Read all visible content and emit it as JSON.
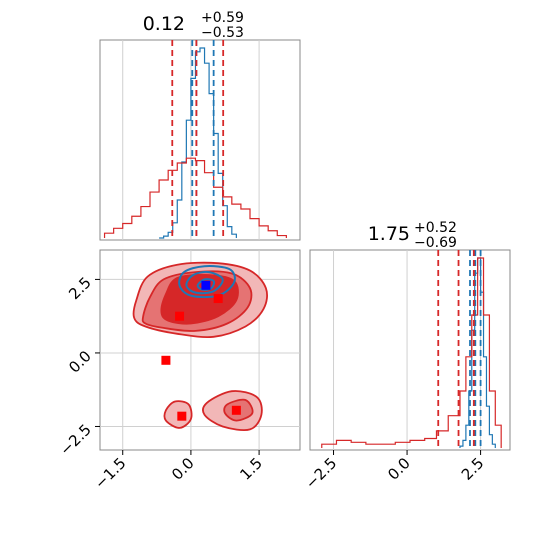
{
  "chart_data": [
    {
      "panel": "top-left",
      "type": "histogram",
      "title_value": "0.12",
      "title_plus": "+0.59",
      "title_minus": "−0.53",
      "xlim": [
        -2.0,
        2.4
      ],
      "grid": true,
      "series": [
        {
          "color": "#1f77b4",
          "bin_edges": [
            -0.7,
            -0.6,
            -0.5,
            -0.4,
            -0.3,
            -0.2,
            -0.1,
            0.0,
            0.1,
            0.2,
            0.3,
            0.4,
            0.5,
            0.6,
            0.7,
            0.8,
            0.9,
            1.0
          ],
          "heights": [
            0,
            1,
            3,
            8,
            20,
            40,
            62,
            84,
            98,
            100,
            92,
            76,
            55,
            34,
            17,
            6,
            2
          ],
          "quantile_lines": [
            0.03,
            0.12,
            0.5
          ]
        },
        {
          "color": "#d62728",
          "bin_edges": [
            -1.9,
            -1.7,
            -1.5,
            -1.3,
            -1.1,
            -0.9,
            -0.7,
            -0.5,
            -0.3,
            -0.1,
            0.1,
            0.3,
            0.5,
            0.7,
            0.9,
            1.1,
            1.3,
            1.5,
            1.7,
            1.9,
            2.1
          ],
          "heights": [
            2,
            4,
            6,
            9,
            13,
            19,
            24,
            28,
            31,
            33,
            32,
            27,
            21,
            17,
            14,
            12,
            8,
            5,
            3,
            1
          ],
          "quantile_lines": [
            -0.41,
            0.12,
            0.71
          ]
        }
      ]
    },
    {
      "panel": "bottom-right",
      "type": "histogram",
      "title_value": "1.75",
      "title_plus": "+0.52",
      "title_minus": "−0.69",
      "xlim": [
        -3.3,
        3.5
      ],
      "ticks": [
        -2.5,
        0.0,
        2.5
      ],
      "tick_labels": [
        "−2.5",
        "0.0",
        "2.5"
      ],
      "grid": true,
      "series": [
        {
          "color": "#1f77b4",
          "bin_edges": [
            1.8,
            1.9,
            2.0,
            2.1,
            2.2,
            2.3,
            2.4,
            2.5,
            2.6,
            2.7,
            2.8,
            2.9,
            3.0
          ],
          "heights": [
            1,
            4,
            12,
            30,
            62,
            92,
            100,
            82,
            48,
            22,
            7,
            2
          ],
          "quantile_lines": [
            2.14,
            2.32,
            2.5
          ]
        },
        {
          "color": "#d62728",
          "bin_edges": [
            -2.9,
            -2.4,
            -1.9,
            -1.4,
            -0.9,
            -0.4,
            0.1,
            0.6,
            1.0,
            1.4,
            1.8,
            2.0,
            2.2,
            2.4,
            2.6,
            2.8,
            3.0,
            3.2
          ],
          "heights": [
            2,
            4,
            3,
            2,
            2,
            3,
            4,
            5,
            9,
            17,
            30,
            48,
            70,
            100,
            70,
            30,
            12
          ],
          "quantile_lines": [
            1.06,
            1.75,
            2.27
          ]
        }
      ]
    },
    {
      "panel": "bottom-left",
      "type": "contour",
      "xlim": [
        -2.0,
        2.4
      ],
      "ylim": [
        -3.3,
        3.5
      ],
      "xticks": [
        -1.5,
        0.0,
        1.5
      ],
      "xtick_labels": [
        "−1.5",
        "0.0",
        "1.5"
      ],
      "yticks": [
        -2.5,
        0.0,
        2.5
      ],
      "ytick_labels": [
        "−2.5",
        "0.0",
        "2.5"
      ],
      "grid": true,
      "red_contours": [
        {
          "level": "outer",
          "fill": "#f2b7b7",
          "points": [
            [
              -1.25,
              1.2
            ],
            [
              -1.2,
              1.8
            ],
            [
              -0.95,
              2.6
            ],
            [
              -0.3,
              3.0
            ],
            [
              0.6,
              3.05
            ],
            [
              1.3,
              2.8
            ],
            [
              1.65,
              2.2
            ],
            [
              1.6,
              1.5
            ],
            [
              1.2,
              0.9
            ],
            [
              0.5,
              0.55
            ],
            [
              -0.3,
              0.65
            ],
            [
              -1.0,
              0.9
            ]
          ]
        },
        {
          "level": "middle",
          "fill": "#e57373",
          "points": [
            [
              -1.05,
              1.25
            ],
            [
              -0.9,
              1.9
            ],
            [
              -0.6,
              2.5
            ],
            [
              0.1,
              2.75
            ],
            [
              0.9,
              2.7
            ],
            [
              1.3,
              2.2
            ],
            [
              1.25,
              1.55
            ],
            [
              0.8,
              1.0
            ],
            [
              0.1,
              0.75
            ],
            [
              -0.6,
              0.85
            ],
            [
              -1.0,
              1.0
            ]
          ]
        },
        {
          "level": "inner",
          "fill": "#d62728",
          "points": [
            [
              -0.65,
              1.4
            ],
            [
              -0.55,
              2.0
            ],
            [
              -0.3,
              2.55
            ],
            [
              0.4,
              2.65
            ],
            [
              0.95,
              2.45
            ],
            [
              1.0,
              1.8
            ],
            [
              0.6,
              1.25
            ],
            [
              0.0,
              1.0
            ],
            [
              -0.5,
              1.1
            ]
          ]
        },
        {
          "level": "lower-left",
          "fill": "#f2b7b7",
          "points": [
            [
              -0.55,
              -1.95
            ],
            [
              -0.35,
              -1.65
            ],
            [
              -0.05,
              -1.75
            ],
            [
              -0.0,
              -2.25
            ],
            [
              -0.25,
              -2.55
            ],
            [
              -0.55,
              -2.3
            ]
          ]
        },
        {
          "level": "lower-right",
          "fill": "#f2b7b7",
          "points": [
            [
              0.35,
              -1.7
            ],
            [
              0.9,
              -1.3
            ],
            [
              1.45,
              -1.5
            ],
            [
              1.55,
              -2.1
            ],
            [
              1.3,
              -2.6
            ],
            [
              0.7,
              -2.5
            ],
            [
              0.3,
              -2.1
            ]
          ]
        },
        {
          "level": "lower-right-inner",
          "fill": "#e57373",
          "points": [
            [
              0.8,
              -1.75
            ],
            [
              1.2,
              -1.6
            ],
            [
              1.35,
              -2.05
            ],
            [
              1.0,
              -2.3
            ],
            [
              0.75,
              -2.05
            ]
          ]
        }
      ],
      "blue_contours": [
        {
          "fill": "none",
          "points": [
            [
              -0.25,
              2.3
            ],
            [
              -0.15,
              2.75
            ],
            [
              0.3,
              2.95
            ],
            [
              0.85,
              2.85
            ],
            [
              0.95,
              2.4
            ],
            [
              0.6,
              1.95
            ],
            [
              0.0,
              1.95
            ]
          ]
        },
        {
          "fill": "none",
          "points": [
            [
              -0.1,
              2.3
            ],
            [
              0.05,
              2.65
            ],
            [
              0.4,
              2.75
            ],
            [
              0.7,
              2.5
            ],
            [
              0.5,
              2.1
            ],
            [
              0.1,
              2.05
            ]
          ]
        },
        {
          "fill": "none",
          "points": [
            [
              0.15,
              2.3
            ],
            [
              0.3,
              2.5
            ],
            [
              0.5,
              2.45
            ],
            [
              0.45,
              2.2
            ],
            [
              0.25,
              2.15
            ]
          ]
        }
      ],
      "markers": [
        {
          "x": -0.25,
          "y": 1.25,
          "color": "#ff0000"
        },
        {
          "x": -0.55,
          "y": -0.25,
          "color": "#ff0000"
        },
        {
          "x": 0.6,
          "y": 1.85,
          "color": "#ff0000"
        },
        {
          "x": -0.2,
          "y": -2.15,
          "color": "#ff0000"
        },
        {
          "x": 1.0,
          "y": -1.95,
          "color": "#ff0000"
        },
        {
          "x": 0.33,
          "y": 2.3,
          "color": "#0000ff"
        }
      ]
    }
  ]
}
